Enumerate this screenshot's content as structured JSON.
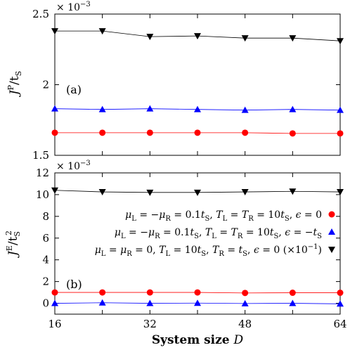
{
  "chart_data": [
    {
      "type": "line",
      "panel_label": "(a)",
      "ylabel_main": "J",
      "ylabel_sup": "P",
      "ylabel_den": "/t",
      "ylabel_den_sub": "S",
      "scale_base": "× 10",
      "scale_exp": "−3",
      "ylim": [
        1.5,
        2.5
      ],
      "yticks": [
        1.5,
        2,
        2.5
      ],
      "ytick_labels": [
        "1.5",
        "2",
        "2.5"
      ],
      "xlim": [
        16,
        64
      ],
      "x": [
        16,
        24,
        32,
        40,
        48,
        56,
        64
      ],
      "series": [
        {
          "color": "#ff0000",
          "marker": "circle",
          "values": [
            1.66,
            1.66,
            1.66,
            1.66,
            1.66,
            1.655,
            1.655
          ]
        },
        {
          "color": "#0000ff",
          "marker": "triangle-up",
          "values": [
            1.83,
            1.825,
            1.83,
            1.825,
            1.82,
            1.825,
            1.82
          ]
        },
        {
          "color": "#000000",
          "marker": "triangle-down",
          "values": [
            2.38,
            2.38,
            2.34,
            2.345,
            2.33,
            2.33,
            2.31
          ]
        }
      ]
    },
    {
      "type": "line",
      "panel_label": "(b)",
      "ylabel_main": "J",
      "ylabel_sup": "E",
      "ylabel_den": "/t",
      "ylabel_den_sub": "S",
      "ylabel_den_sup": "2",
      "scale_base": "× 10",
      "scale_exp": "−3",
      "ylim": [
        -1,
        12
      ],
      "yticks": [
        0,
        2,
        4,
        6,
        8,
        10,
        12
      ],
      "ytick_labels": [
        "0",
        "2",
        "4",
        "6",
        "8",
        "10",
        "12"
      ],
      "xlim": [
        16,
        64
      ],
      "x": [
        16,
        24,
        32,
        40,
        48,
        56,
        64
      ],
      "xticks": [
        16,
        32,
        48,
        64
      ],
      "xtick_labels": [
        "16",
        "32",
        "48",
        "64"
      ],
      "xlabel": "System size",
      "xlabel_var": "D",
      "legend_position": "center-right",
      "series": [
        {
          "color": "#ff0000",
          "marker": "circle",
          "values": [
            1.0,
            1.0,
            1.0,
            1.0,
            0.95,
            0.97,
            0.97
          ],
          "legend": "μL = −μR = 0.1tS, TL = TR = 10tS, ϵ = 0"
        },
        {
          "color": "#0000ff",
          "marker": "triangle-up",
          "values": [
            0.0,
            0.05,
            0.0,
            0.02,
            -0.02,
            0.0,
            -0.05
          ],
          "legend": "μL = −μR = 0.1tS, TL = TR = 10tS, ϵ = −tS"
        },
        {
          "color": "#000000",
          "marker": "triangle-down",
          "values": [
            10.4,
            10.25,
            10.2,
            10.2,
            10.25,
            10.3,
            10.25
          ],
          "legend": "μL = μR = 0, TL = 10tS, TR = tS, ϵ = 0 (×10−1)"
        }
      ]
    }
  ]
}
